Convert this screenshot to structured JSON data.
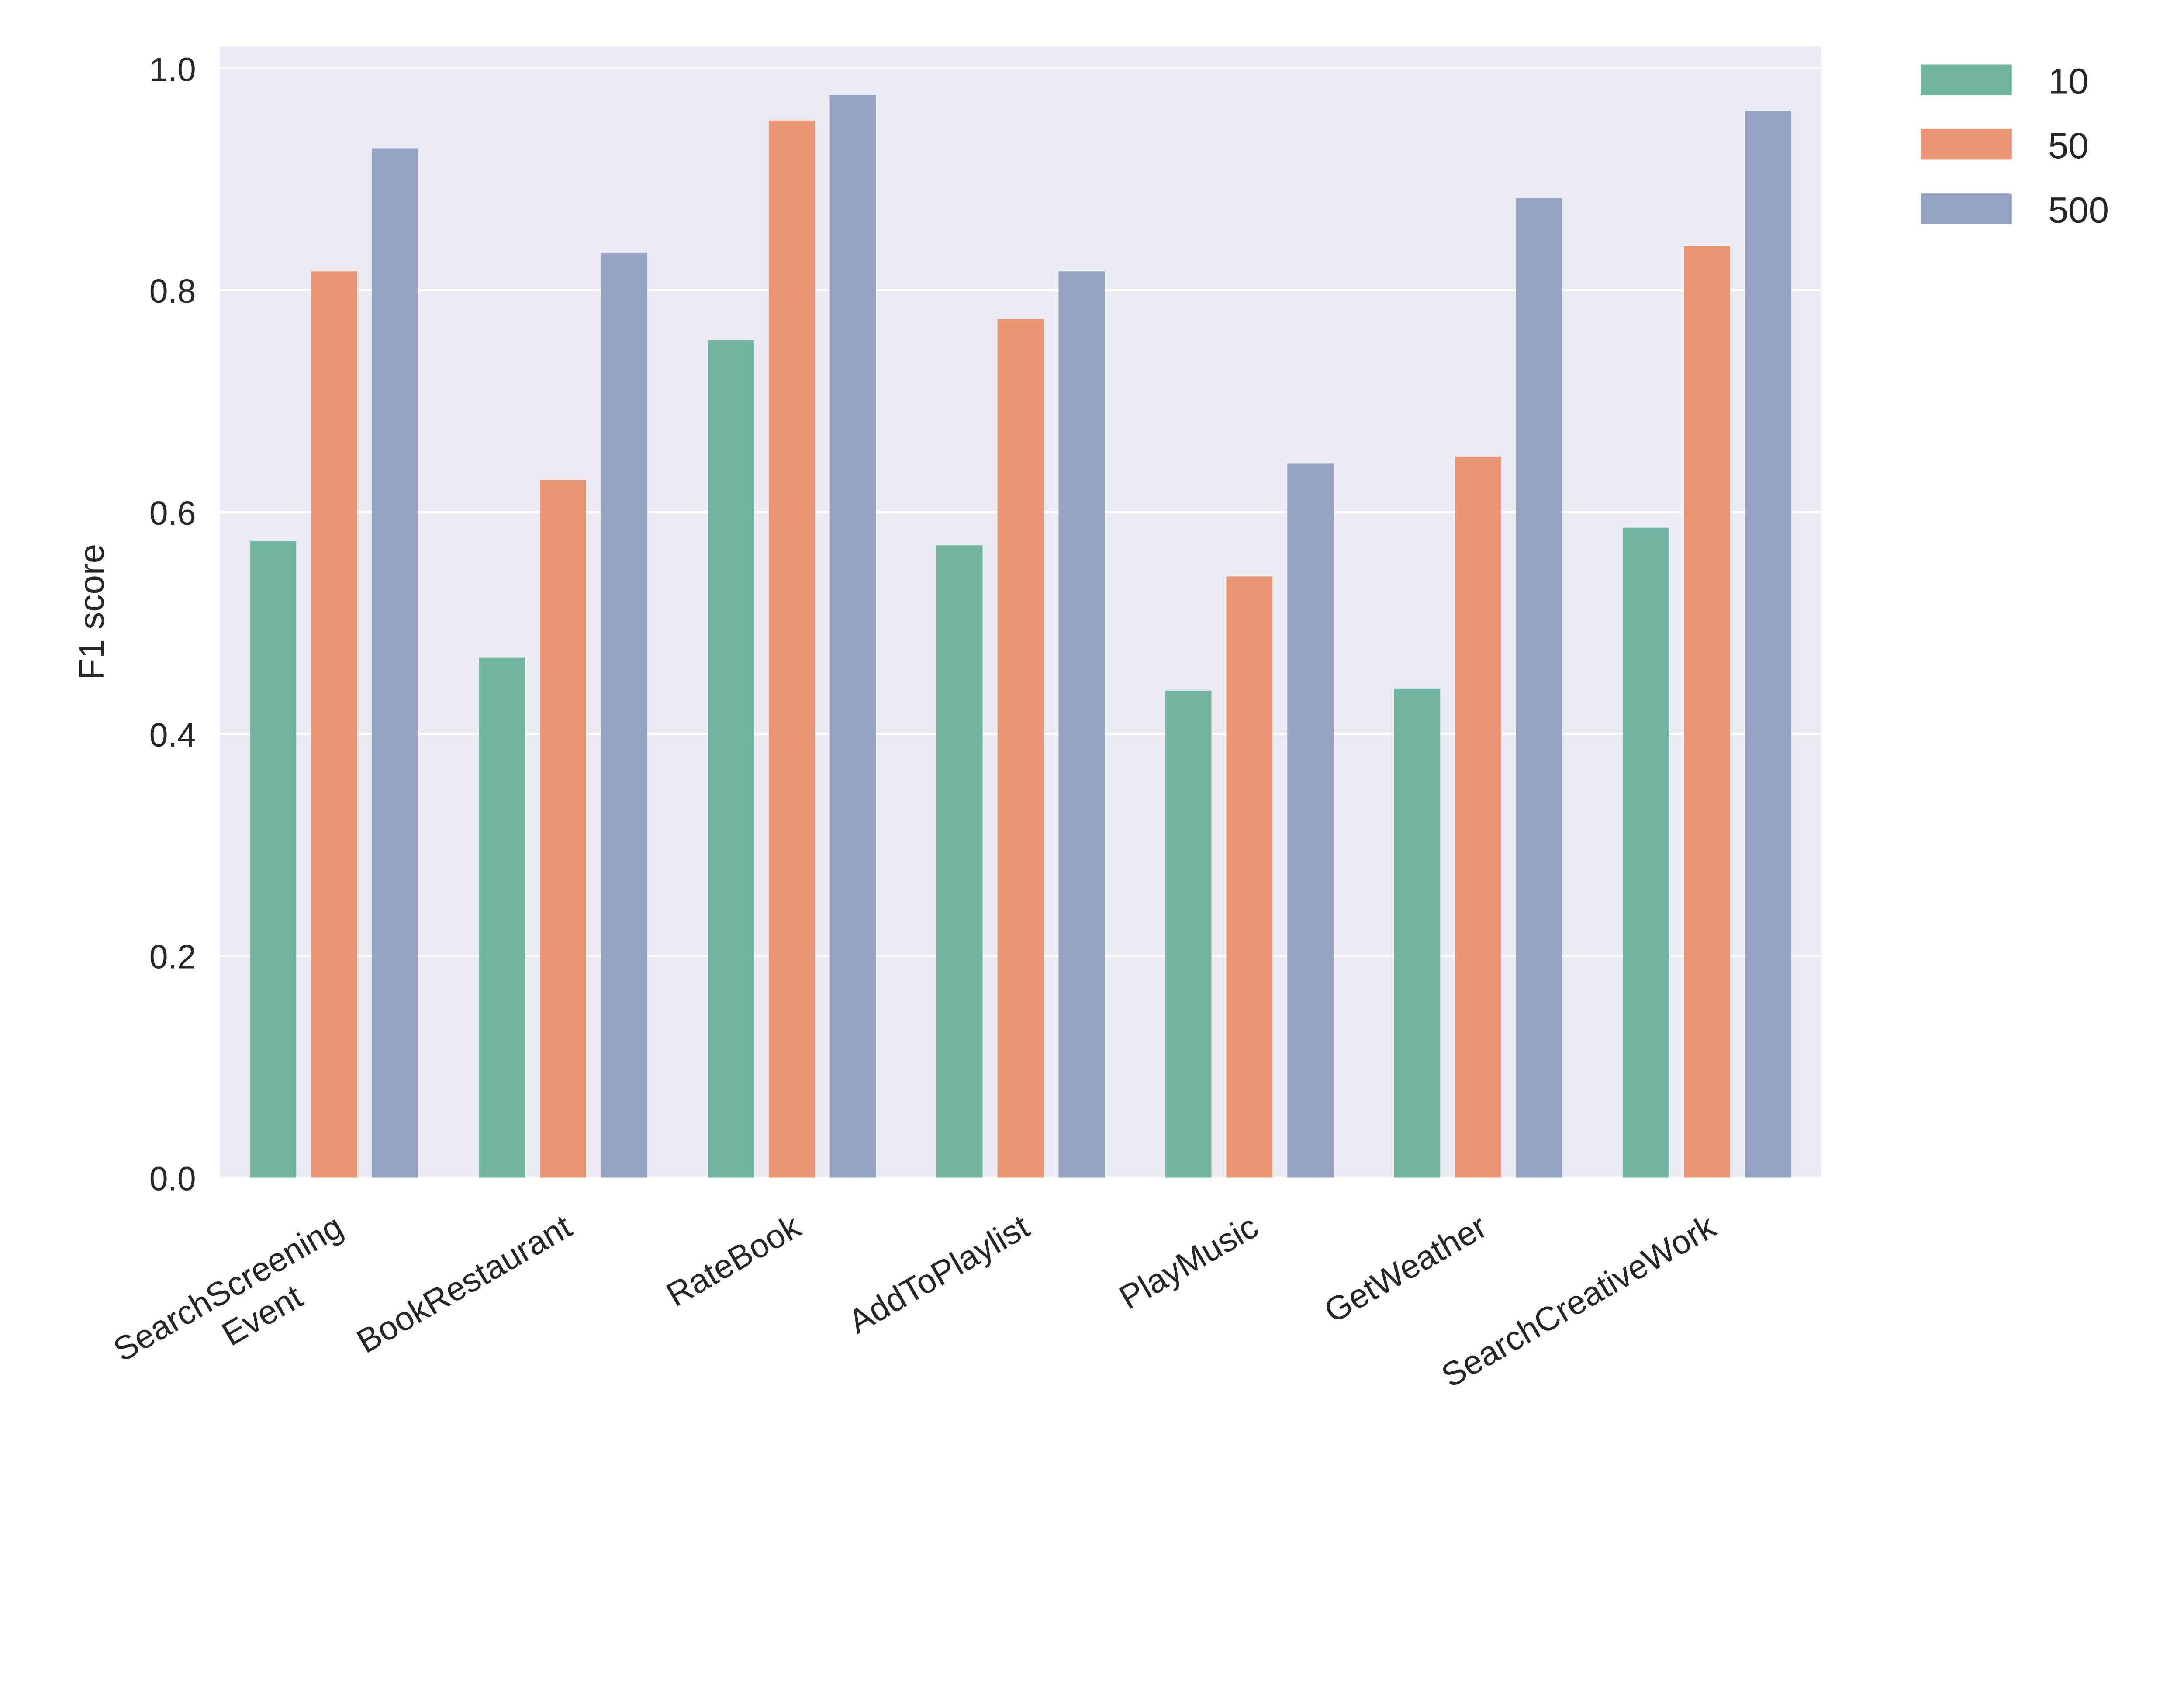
{
  "chart_data": {
    "type": "bar",
    "title": "",
    "xlabel": "",
    "ylabel": "F1 score",
    "ylim": [
      0,
      1.02
    ],
    "yticks": [
      "0.0",
      "0.2",
      "0.4",
      "0.6",
      "0.8",
      "1.0"
    ],
    "grid": true,
    "legend_position": "outside-top-right",
    "categories": [
      [
        "SearchScreening",
        "Event"
      ],
      [
        "BookRestaurant"
      ],
      [
        "RateBook"
      ],
      [
        "AddToPlaylist"
      ],
      [
        "PlayMusic"
      ],
      [
        "GetWeather"
      ],
      [
        "SearchCreativeWork"
      ]
    ],
    "series": [
      {
        "name": "10",
        "color": "#72b6a1",
        "values": [
          0.574,
          0.469,
          0.755,
          0.57,
          0.439,
          0.441,
          0.586
        ]
      },
      {
        "name": "50",
        "color": "#e99675",
        "values": [
          0.817,
          0.629,
          0.953,
          0.774,
          0.542,
          0.65,
          0.84
        ]
      },
      {
        "name": "500",
        "color": "#95a3c3",
        "values": [
          0.928,
          0.834,
          0.976,
          0.817,
          0.644,
          0.883,
          0.962
        ]
      }
    ],
    "background": "#eaeaf2"
  }
}
